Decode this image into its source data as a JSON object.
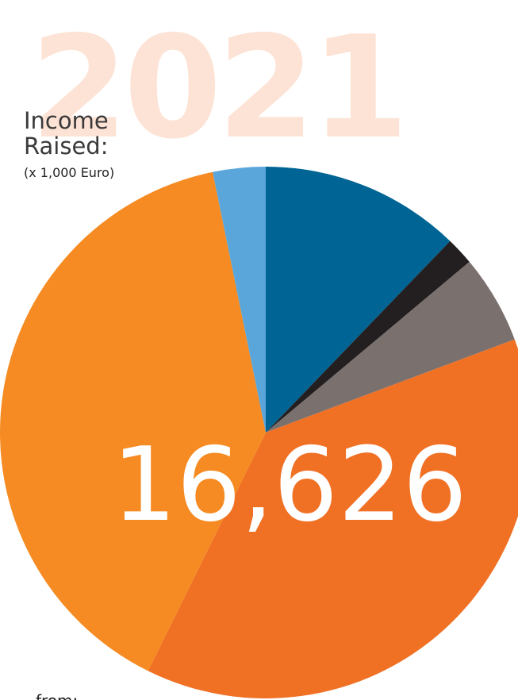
{
  "chart_data": {
    "type": "pie",
    "year": "2021",
    "title_lines": [
      "Income",
      "Raised:"
    ],
    "unit_note": "(x 1,000 Euro)",
    "total": "16,626",
    "footer": "from:",
    "categories": [
      null,
      null,
      null,
      null,
      null,
      null
    ],
    "values": [
      12.2,
      1.7,
      5.4,
      38.0,
      39.5,
      3.2
    ],
    "colors": [
      "#006494",
      "#231f20",
      "#7a716e",
      "#f07024",
      "#f58b22",
      "#5aa6da"
    ]
  }
}
